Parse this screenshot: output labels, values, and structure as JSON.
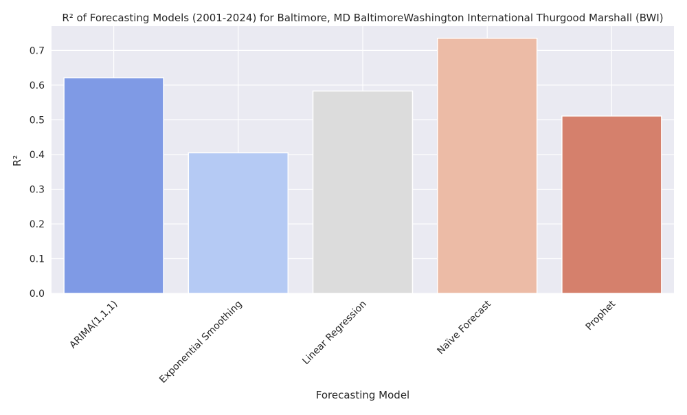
{
  "chart_data": {
    "type": "bar",
    "title": "R² of Forecasting Models (2001-2024) for Baltimore, MD BaltimoreWashington International Thurgood Marshall (BWI)",
    "xlabel": "Forecasting Model",
    "ylabel": "R²",
    "categories": [
      "ARIMA(1,1,1)",
      "Exponential Smoothing",
      "Linear Regression",
      "Naïve Forecast",
      "Prophet"
    ],
    "values": [
      0.621,
      0.405,
      0.583,
      0.735,
      0.511
    ],
    "colors": [
      "#7f9ae5",
      "#b5caf4",
      "#dcdcdc",
      "#ecbba6",
      "#d5806c"
    ],
    "ylim": [
      0,
      0.77
    ],
    "yticks": [
      "0.0",
      "0.1",
      "0.2",
      "0.3",
      "0.4",
      "0.5",
      "0.6",
      "0.7"
    ],
    "grid": true,
    "background": "#eaeaf2"
  }
}
